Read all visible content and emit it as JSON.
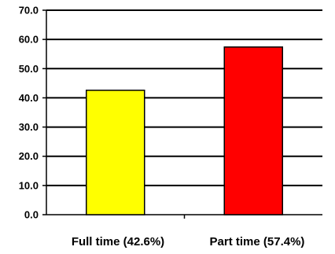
{
  "chart_data": {
    "type": "bar",
    "categories": [
      "Full time (42.6%)",
      "Part time (57.4%)"
    ],
    "values": [
      42.6,
      57.4
    ],
    "colors": [
      "#ffff00",
      "#ff0000"
    ],
    "ylim": [
      0,
      70
    ],
    "yticks": [
      "0.0",
      "10.0",
      "20.0",
      "30.0",
      "40.0",
      "50.0",
      "60.0",
      "70.0"
    ],
    "grid": true,
    "legend": "none"
  }
}
